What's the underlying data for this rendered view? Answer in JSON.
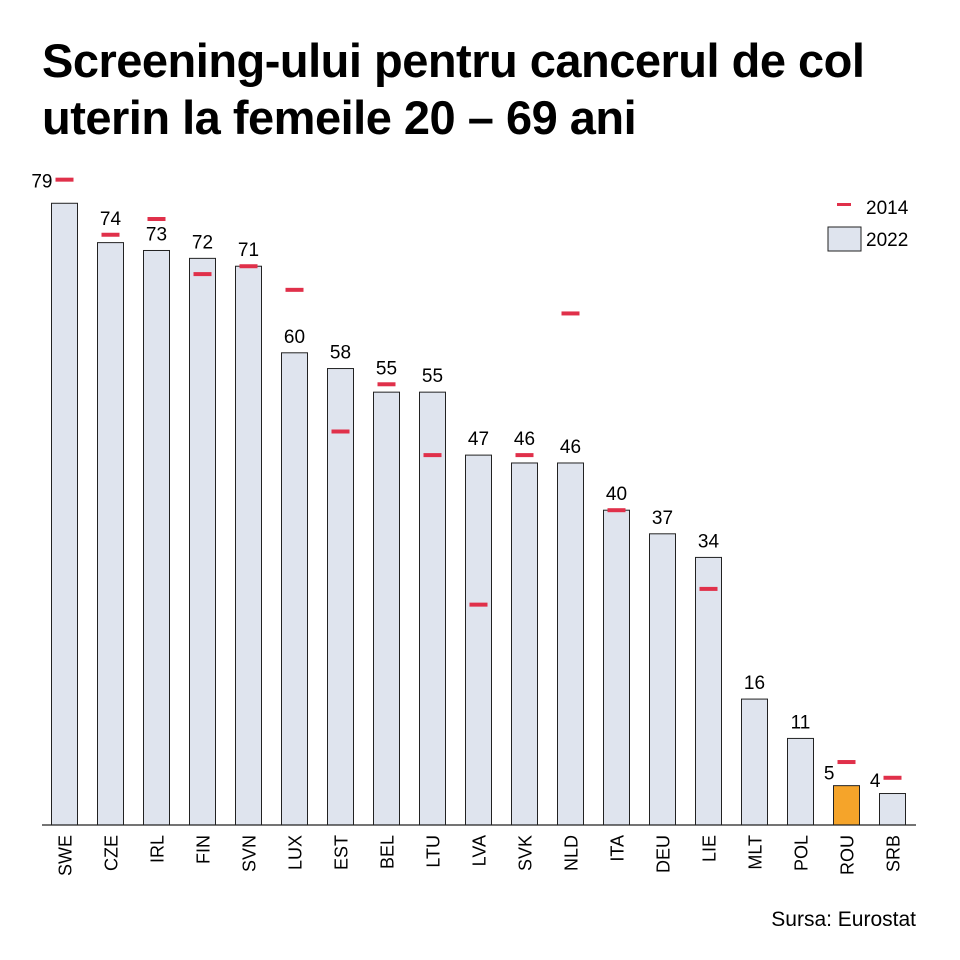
{
  "chart_data": {
    "type": "bar",
    "title": "Screening-ului pentru cancerul de col uterin la femeile 20 – 69 ani",
    "source": "Sursa: Eurostat",
    "categories": [
      "SWE",
      "CZE",
      "IRL",
      "FIN",
      "SVN",
      "LUX",
      "EST",
      "BEL",
      "LTU",
      "LVA",
      "SVK",
      "NLD",
      "ITA",
      "DEU",
      "LIE",
      "MLT",
      "POL",
      "ROU",
      "SRB"
    ],
    "series": [
      {
        "name": "2022",
        "type": "bar",
        "values": [
          79,
          74,
          73,
          72,
          71,
          60,
          58,
          55,
          55,
          47,
          46,
          46,
          40,
          37,
          34,
          16,
          11,
          5,
          4
        ]
      },
      {
        "name": "2014",
        "type": "marker",
        "values": [
          82,
          75,
          77,
          70,
          71,
          68,
          50,
          56,
          47,
          28,
          47,
          65,
          40,
          null,
          30,
          null,
          null,
          8,
          6
        ]
      }
    ],
    "highlight": {
      "category": "ROU",
      "color": "#f5a42a"
    },
    "colors": {
      "bar": "#dfe4ee",
      "marker": "#e0304a",
      "highlight": "#f5a42a"
    },
    "legend": [
      "2014",
      "2022"
    ],
    "legend_position": "top-right",
    "ylim": [
      0,
      80
    ],
    "xlabel": "",
    "ylabel": "",
    "grid": false
  }
}
